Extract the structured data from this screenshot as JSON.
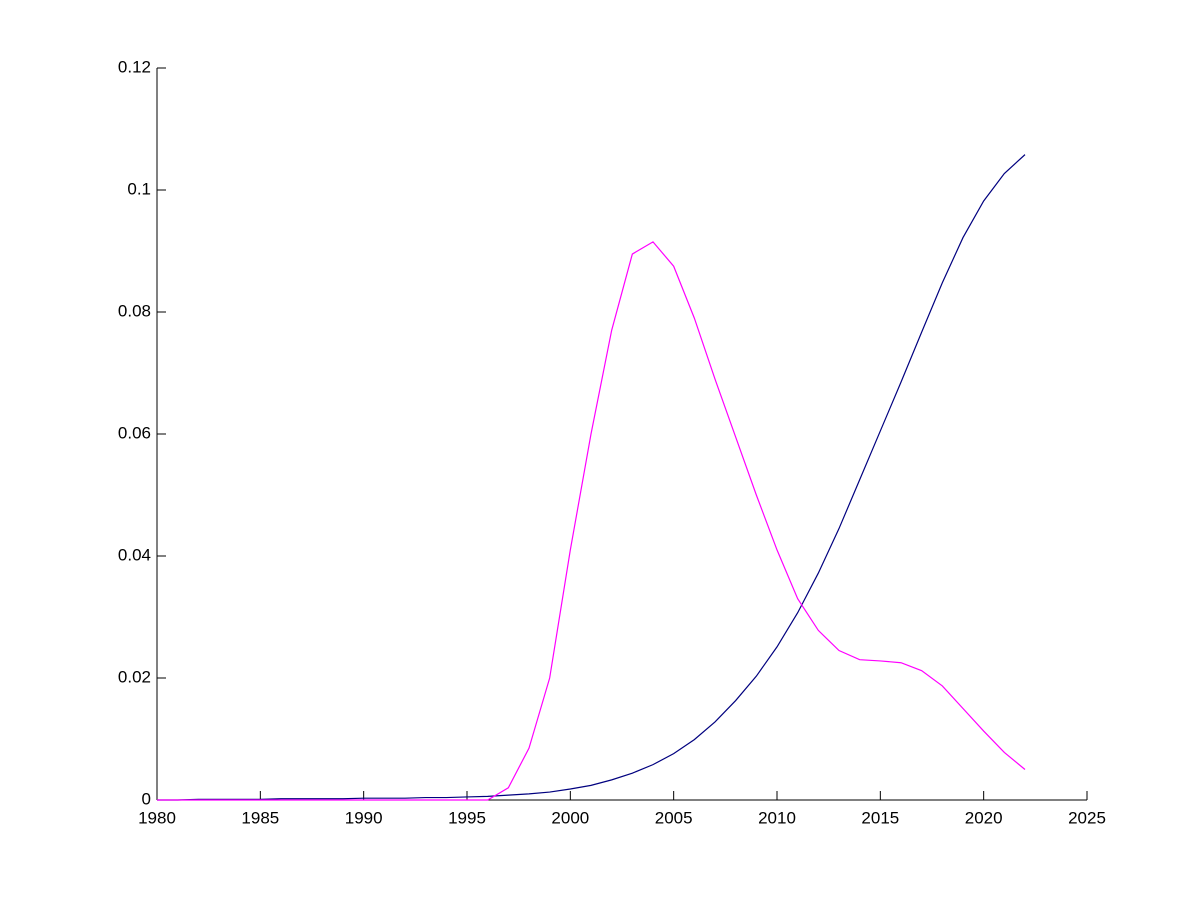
{
  "chart_data": {
    "type": "line",
    "x": [
      1980,
      1981,
      1982,
      1983,
      1984,
      1985,
      1986,
      1987,
      1988,
      1989,
      1990,
      1991,
      1992,
      1993,
      1994,
      1995,
      1996,
      1997,
      1998,
      1999,
      2000,
      2001,
      2002,
      2003,
      2004,
      2005,
      2006,
      2007,
      2008,
      2009,
      2010,
      2011,
      2012,
      2013,
      2014,
      2015,
      2016,
      2017,
      2018,
      2019,
      2020,
      2021,
      2022
    ],
    "series": [
      {
        "color": "#00007f",
        "values": [
          0,
          0,
          0.0001,
          0.0001,
          0.0001,
          0.0001,
          0.0002,
          0.0002,
          0.0002,
          0.0002,
          0.0003,
          0.0003,
          0.0003,
          0.0004,
          0.0004,
          0.0005,
          0.0006,
          0.0008,
          0.001,
          0.0013,
          0.0018,
          0.0024,
          0.0033,
          0.0044,
          0.0058,
          0.0076,
          0.0099,
          0.0128,
          0.0163,
          0.0203,
          0.0251,
          0.0307,
          0.0372,
          0.0445,
          0.0525,
          0.0605,
          0.0685,
          0.0767,
          0.0848,
          0.0922,
          0.0982,
          0.1027,
          0.1058
        ]
      },
      {
        "color": "#ff00ff",
        "values": [
          0,
          0,
          0,
          0,
          0,
          0,
          0,
          0,
          0,
          0,
          0,
          0,
          0,
          0,
          0,
          0,
          0,
          0.002,
          0.0085,
          0.02,
          0.041,
          0.06,
          0.077,
          0.0895,
          0.0915,
          0.0875,
          0.079,
          0.069,
          0.0595,
          0.05,
          0.041,
          0.033,
          0.0278,
          0.0245,
          0.023,
          0.0228,
          0.0225,
          0.0212,
          0.0187,
          0.015,
          0.0113,
          0.0078,
          0.005
        ]
      }
    ],
    "xlim": [
      1980,
      2025
    ],
    "xticks": [
      1980,
      1985,
      1990,
      1995,
      2000,
      2005,
      2010,
      2015,
      2020,
      2025
    ],
    "ylim": [
      0,
      0.12
    ],
    "yticks": [
      0,
      0.02,
      0.04,
      0.06,
      0.08,
      0.1,
      0.12
    ],
    "grid": false
  }
}
